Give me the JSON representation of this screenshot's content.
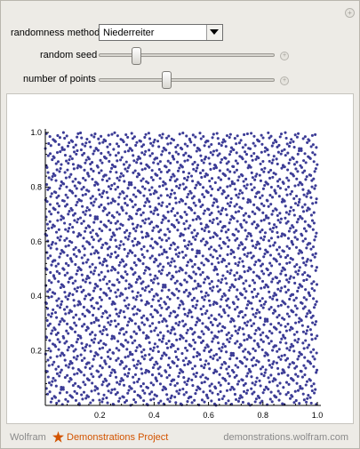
{
  "controls": {
    "method_label": "randomness method",
    "method_value": "Niederreiter",
    "seed_label": "random seed",
    "seed_level": 0.2,
    "points_label": "number of points",
    "points_level": 0.38
  },
  "chart_data": {
    "type": "scatter",
    "title": "",
    "xlabel": "",
    "ylabel": "",
    "xlim": [
      0,
      1
    ],
    "ylim": [
      0,
      1
    ],
    "xticks": [
      "0.2",
      "0.4",
      "0.6",
      "0.8",
      "1.0"
    ],
    "yticks": [
      "0.2",
      "0.4",
      "0.6",
      "0.8",
      "1.0"
    ],
    "point_color": "#3c3c96",
    "generator": "niederreiter-base2-2d",
    "point_count": 3000,
    "grid": false
  },
  "footer": {
    "brand": "Wolfram",
    "project": "Demonstrations Project",
    "url": "demonstrations.wolfram.com"
  },
  "colors": {
    "accent": "#d35400",
    "panel_bg": "#edebe6"
  }
}
